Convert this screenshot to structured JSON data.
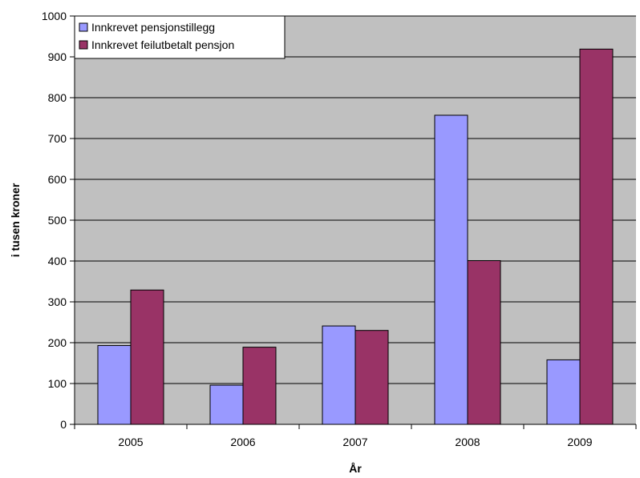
{
  "chart_data": {
    "type": "bar",
    "title": "",
    "xlabel": "År",
    "ylabel": "i tusen kroner",
    "categories": [
      "2005",
      "2006",
      "2007",
      "2008",
      "2009"
    ],
    "series": [
      {
        "name": "Innkrevet pensjonstillegg",
        "values": [
          193,
          96,
          241,
          757,
          158
        ],
        "color": "#9999ff"
      },
      {
        "name": "Innkrevet feilutbetalt pensjon",
        "values": [
          329,
          189,
          230,
          401,
          919
        ],
        "color": "#993366"
      }
    ],
    "ylim": [
      0,
      1000
    ],
    "yticks": [
      0,
      100,
      200,
      300,
      400,
      500,
      600,
      700,
      800,
      900,
      1000
    ],
    "grid": true,
    "plot_background": "#c0c0c0",
    "legend_position": "top-left"
  }
}
